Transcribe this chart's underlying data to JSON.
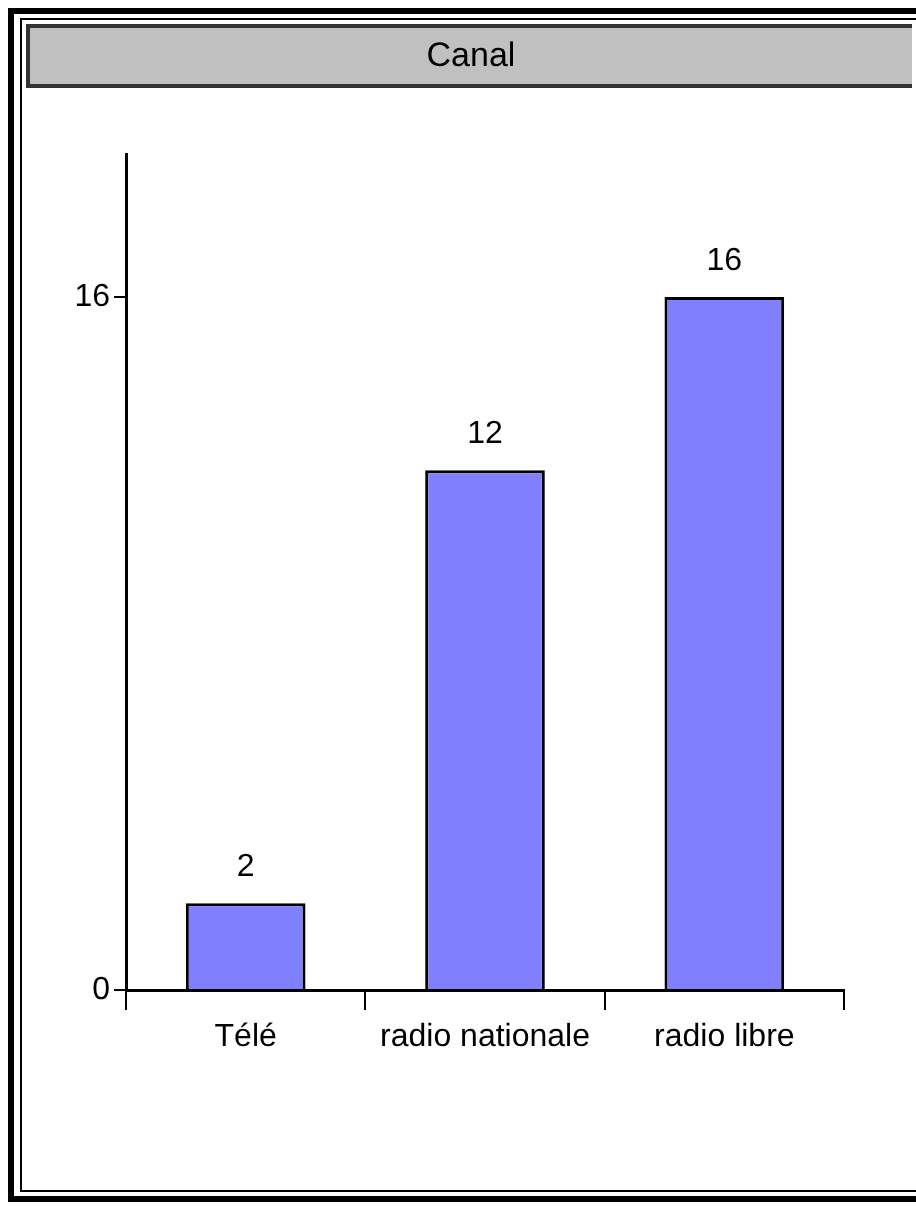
{
  "chart_data": {
    "type": "bar",
    "title": "Canal",
    "categories": [
      "Télé",
      "radio nationale",
      "radio libre"
    ],
    "values": [
      2,
      12,
      16
    ],
    "color": "#8080ff",
    "ylim": [
      0,
      19.3
    ],
    "yticks": [
      0,
      16
    ],
    "data_labels": true,
    "grid": false,
    "legend": false
  }
}
